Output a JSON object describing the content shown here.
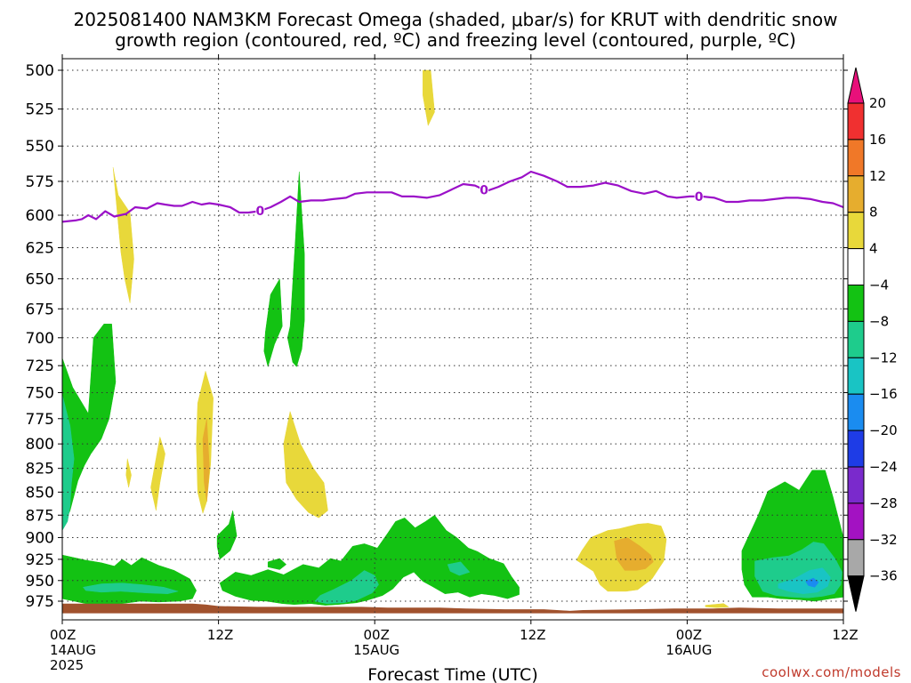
{
  "header": {
    "title_line1": "2025081400 NAM3KM Forecast Omega (shaded, μbar/s) for KRUT with dendritic snow",
    "title_line2": "growth region (contoured, red, ºC) and freezing level (contoured, purple, ºC)"
  },
  "footer": {
    "credit": "coolwx.com/models"
  },
  "chart_data": {
    "type": "heatmap",
    "title": "2025081400 NAM3KM Forecast Omega (shaded, μbar/s) for KRUT with dendritic snow growth region (contoured, red, ºC) and freezing level (contoured, purple, ºC)",
    "xlabel": "Forecast Time (UTC)",
    "ylabel": "",
    "x_unit": "hours since 2025-08-14 00Z",
    "xlim": [
      0,
      60
    ],
    "ylim": [
      990,
      495
    ],
    "y_axis": "pressure (hPa)",
    "y_ticks": [
      500,
      525,
      550,
      575,
      600,
      625,
      650,
      675,
      700,
      725,
      750,
      775,
      800,
      825,
      850,
      875,
      900,
      925,
      950,
      975
    ],
    "x_ticks": [
      {
        "x": 0,
        "line1": "00Z",
        "line2": "14AUG",
        "line3": "2025"
      },
      {
        "x": 12,
        "line1": "12Z",
        "line2": "",
        "line3": ""
      },
      {
        "x": 24,
        "line1": "00Z",
        "line2": "15AUG",
        "line3": ""
      },
      {
        "x": 36,
        "line1": "12Z",
        "line2": "",
        "line3": ""
      },
      {
        "x": 48,
        "line1": "00Z",
        "line2": "16AUG",
        "line3": ""
      },
      {
        "x": 60,
        "line1": "12Z",
        "line2": "",
        "line3": ""
      }
    ],
    "grid": true,
    "colorbar": {
      "position": "right",
      "levels": [
        "20",
        "16",
        "12",
        "8",
        "4",
        "−4",
        "−8",
        "−12",
        "−16",
        "−20",
        "−24",
        "−28",
        "−32",
        "−36"
      ],
      "colors": [
        "#e8107a",
        "#f03030",
        "#f07828",
        "#e6ad2e",
        "#e8d83a",
        "#ffffff",
        "#13c213",
        "#1ecc8c",
        "#19c4c4",
        "#1a8cf0",
        "#1e3ce6",
        "#7a2acc",
        "#a312c2",
        "#a8a8a8",
        "#000000"
      ]
    },
    "freezing_level": {
      "color": "#9b10c8",
      "label": "0",
      "label_x": [
        15.2,
        32.4,
        48.9
      ],
      "x": [
        0,
        1,
        1.5,
        2,
        2.6,
        3.3,
        4,
        4.9,
        5.6,
        6.5,
        7.3,
        7.9,
        8.6,
        9.2,
        10,
        10.7,
        11.3,
        12,
        12.9,
        13.6,
        14.3,
        15.1,
        16,
        16.8,
        17.5,
        18.2,
        19.1,
        20,
        20.8,
        21.8,
        22.5,
        23.4,
        24.3,
        25.3,
        26.1,
        27,
        28,
        29,
        29.9,
        30.8,
        31.7,
        32.6,
        33.5,
        34.4,
        35.3,
        36,
        37,
        38,
        38.8,
        39.8,
        40.8,
        41.7,
        42.7,
        43.7,
        44.7,
        45.6,
        46.5,
        47.2,
        48.2,
        49.1,
        50.1,
        51,
        51.9,
        52.8,
        53.8,
        54.7,
        55.6,
        56.5,
        57.5,
        58.4,
        59.2,
        60
      ],
      "y": [
        605,
        604,
        603,
        600,
        603,
        597,
        601,
        599,
        594,
        595,
        591,
        592,
        593,
        593,
        590,
        592,
        591,
        592,
        594,
        598,
        598,
        597,
        594,
        590,
        586,
        590,
        589,
        589,
        588,
        587,
        584,
        583,
        583,
        583,
        586,
        586,
        587,
        585,
        581,
        577,
        578,
        582,
        579,
        575,
        572,
        568,
        571,
        575,
        579,
        579,
        578,
        576,
        578,
        582,
        584,
        582,
        586,
        587,
        586,
        586,
        587,
        590,
        590,
        589,
        589,
        588,
        587,
        587,
        588,
        590,
        591,
        594
      ]
    },
    "omega_regions": [
      {
        "value": "-4 to -8",
        "color": "#13c213",
        "x": [
          0,
          0.8,
          2,
          2.4,
          3.2,
          3.8,
          4.1,
          3.6,
          3,
          2.2,
          1.7,
          1.2,
          0.6,
          0
        ],
        "p": [
          718,
          745,
          770,
          700,
          688,
          688,
          740,
          775,
          795,
          810,
          822,
          838,
          870,
          890
        ]
      },
      {
        "value": "-4 to -8",
        "color": "#13c213",
        "x": [
          0,
          1.8,
          3,
          4,
          4.6,
          5.3,
          6.1,
          7.4,
          8.6,
          9.8,
          10.3,
          10,
          9,
          7.4,
          6,
          4.6,
          3,
          1.8,
          0
        ],
        "p": [
          920,
          926,
          929,
          933,
          925,
          932,
          923,
          932,
          938,
          948,
          962,
          972,
          975,
          976,
          975,
          978,
          980,
          978,
          972
        ]
      },
      {
        "value": "-8 to -12",
        "color": "#1ecc8c",
        "x": [
          0,
          0.6,
          0.9,
          0.7,
          0.6,
          0.4,
          0
        ],
        "p": [
          752,
          782,
          815,
          842,
          865,
          882,
          892
        ]
      },
      {
        "value": "-8 to -12",
        "color": "#1ecc8c",
        "x": [
          1.6,
          3,
          4.6,
          6.2,
          7.8,
          8.9,
          8.1,
          6.5,
          4.5,
          3,
          1.8
        ],
        "p": [
          958,
          954,
          953,
          955,
          958,
          963,
          966,
          965,
          963,
          964,
          962
        ]
      },
      {
        "value": "-4 to -8",
        "color": "#13c213",
        "x": [
          11.9,
          12.8,
          13.1,
          13.4,
          12.9,
          12.1,
          11.9
        ],
        "p": [
          898,
          885,
          870,
          898,
          915,
          925,
          910
        ]
      },
      {
        "value": "-4 to -8",
        "color": "#13c213",
        "x": [
          12.1,
          13.3,
          14.5,
          15.8,
          17,
          18.5,
          19.7,
          20.6,
          21.4,
          22.3,
          23.2,
          24.2,
          25,
          25.6,
          26.3,
          27.1,
          27.9,
          28.6,
          29.5,
          30.3,
          31.2,
          31.9,
          32.8,
          33.9,
          34.5,
          35.1,
          35.1,
          34.2,
          33.2,
          32.2,
          31.3,
          30.4,
          29.4,
          28.4,
          27.7,
          27,
          26.2,
          25.4,
          24.6,
          23.4,
          22.6,
          21.2,
          20.2,
          19.1,
          17.8,
          16.9,
          15.7,
          14.5,
          13.3,
          12.3
        ],
        "p": [
          953,
          940,
          944,
          937,
          943,
          931,
          935,
          924,
          927,
          910,
          907,
          912,
          895,
          882,
          878,
          889,
          882,
          875,
          892,
          900,
          912,
          916,
          924,
          930,
          945,
          958,
          967,
          972,
          968,
          966,
          970,
          964,
          966,
          957,
          951,
          940,
          946,
          960,
          968,
          974,
          977,
          979,
          980,
          978,
          979,
          978,
          975,
          974,
          969,
          962
        ]
      },
      {
        "value": "-8 to -12",
        "color": "#1ecc8c",
        "x": [
          20.8,
          22.2,
          23.2,
          24,
          24.3,
          23.8,
          22.6,
          21.6,
          20.3,
          19.4,
          19.8
        ],
        "p": [
          961,
          950,
          938,
          944,
          955,
          965,
          974,
          977,
          978,
          975,
          968
        ]
      },
      {
        "value": "-8 to -12",
        "color": "#1ecc8c",
        "x": [
          29.6,
          30.6,
          31.3,
          30.5,
          29.8
        ],
        "p": [
          931,
          928,
          940,
          944,
          939
        ]
      },
      {
        "value": "-4 to -8",
        "color": "#13c213",
        "x": [
          15.8,
          16.7,
          17.2,
          16.7,
          15.8
        ],
        "p": [
          928,
          924,
          931,
          937,
          934
        ]
      },
      {
        "value": "-4 to -8",
        "color": "#13c213",
        "x": [
          15.6,
          16,
          16.7,
          16.9,
          16.3,
          15.8,
          15.5
        ],
        "p": [
          695,
          663,
          650,
          690,
          706,
          726,
          712
        ]
      },
      {
        "value": "-4 to -8",
        "color": "#13c213",
        "x": [
          17.5,
          17.9,
          18.2,
          18.6,
          18.6,
          18.4,
          18,
          17.7,
          17.3
        ],
        "p": [
          690,
          620,
          568,
          630,
          685,
          710,
          726,
          722,
          700
        ]
      },
      {
        "value": "-4 to -8",
        "color": "#13c213",
        "x": [
          52.2,
          53.4,
          54.2,
          55.5,
          56.6,
          57.6,
          58.6,
          59.2,
          60,
          60,
          59,
          57.8,
          56.6,
          55.2,
          54.2,
          53,
          52.4,
          52.2
        ],
        "p": [
          915,
          877,
          849,
          839,
          848,
          827,
          827,
          855,
          900,
          970,
          972,
          975,
          973,
          972,
          970,
          970,
          955,
          937
        ]
      },
      {
        "value": "-8 to -12",
        "color": "#1ecc8c",
        "x": [
          53.2,
          54.6,
          55.8,
          56.8,
          57.7,
          58.5,
          59.4,
          59.9,
          59.8,
          59.3,
          58.4,
          57.3,
          56,
          54.8,
          53.8,
          53.2
        ],
        "p": [
          927,
          923,
          921,
          914,
          905,
          907,
          925,
          940,
          955,
          966,
          969,
          971,
          970,
          968,
          963,
          945
        ]
      },
      {
        "value": "-12 to -16",
        "color": "#19c4c4",
        "x": [
          55,
          56.2,
          57.4,
          58.4,
          59,
          58.8,
          58,
          56.9,
          55.8,
          55
        ],
        "p": [
          954,
          948,
          938,
          935,
          946,
          957,
          964,
          966,
          963,
          959
        ]
      },
      {
        "value": "-16 to -20",
        "color": "#1a8cf0",
        "x": [
          57.1,
          57.7,
          58.1,
          57.8,
          57.3
        ],
        "p": [
          951,
          947,
          952,
          958,
          956
        ]
      },
      {
        "value": "4 to 8",
        "color": "#e8d83a",
        "x": [
          3.9,
          4.3,
          5.2,
          5.5,
          5.2,
          4.8,
          4.5
        ],
        "p": [
          565,
          585,
          598,
          634,
          670,
          650,
          628
        ]
      },
      {
        "value": "4 to 8",
        "color": "#e8d83a",
        "x": [
          27.7,
          28.3,
          28.6,
          28.1,
          27.7
        ],
        "p": [
          500,
          500,
          527,
          536,
          516
        ]
      },
      {
        "value": "4 to 8",
        "color": "#e8d83a",
        "x": [
          7,
          7.5,
          7.9,
          7.5,
          7.2,
          6.8
        ],
        "p": [
          830,
          793,
          810,
          840,
          870,
          845
        ]
      },
      {
        "value": "4 to 8",
        "color": "#e8d83a",
        "x": [
          5,
          5.3,
          5.1,
          4.9
        ],
        "p": [
          815,
          832,
          845,
          832
        ]
      },
      {
        "value": "4 to 8",
        "color": "#e8d83a",
        "x": [
          10.4,
          11,
          11.6,
          11.4,
          11.1,
          10.8,
          10.4,
          10.3
        ],
        "p": [
          760,
          730,
          755,
          820,
          860,
          873,
          850,
          800
        ]
      },
      {
        "value": "8 to 12",
        "color": "#e6ad2e",
        "x": [
          10.8,
          11.1,
          11.3,
          11.1,
          10.9
        ],
        "p": [
          795,
          775,
          825,
          860,
          840
        ]
      },
      {
        "value": "4 to 8",
        "color": "#e8d83a",
        "x": [
          17,
          17.5,
          18.3,
          19.3,
          20.1,
          20.4,
          19.7,
          18.9,
          18,
          17.2
        ],
        "p": [
          800,
          768,
          800,
          825,
          840,
          870,
          878,
          872,
          858,
          840
        ]
      },
      {
        "value": "4 to 8",
        "color": "#e8d83a",
        "x": [
          40.6,
          41.9,
          42.8,
          44.2,
          45,
          46,
          46.4,
          46.2,
          45.3,
          44.2,
          43.3,
          41.9,
          41.3,
          40.8,
          39.5,
          39.9
        ],
        "p": [
          900,
          892,
          890,
          885,
          884,
          887,
          902,
          927,
          948,
          961,
          963,
          963,
          955,
          939,
          926,
          915
        ]
      },
      {
        "value": "8 to 12",
        "color": "#e6ad2e",
        "x": [
          42.4,
          43.4,
          44.4,
          45.2,
          45.4,
          44.8,
          44.1,
          43.2,
          42.6
        ],
        "p": [
          904,
          900,
          910,
          920,
          928,
          936,
          938,
          938,
          925
        ]
      },
      {
        "value": "4 to 8",
        "color": "#e8d83a",
        "x": [
          49.4,
          50.8,
          51.2,
          50.3,
          49.4
        ],
        "p": [
          980,
          978,
          982,
          983,
          982
        ]
      }
    ],
    "terrain": {
      "color": "#a1522d",
      "x": [
        0,
        10,
        11,
        12,
        15,
        20,
        23,
        25,
        29,
        31,
        34,
        37,
        38,
        39,
        40,
        44,
        47,
        50,
        52,
        55,
        60
      ],
      "top_p": [
        978,
        978,
        979,
        981,
        982,
        982,
        982,
        983,
        983,
        984,
        985,
        985,
        986,
        987,
        986,
        985,
        984,
        984,
        983,
        984,
        984
      ],
      "base_p": 990
    }
  }
}
